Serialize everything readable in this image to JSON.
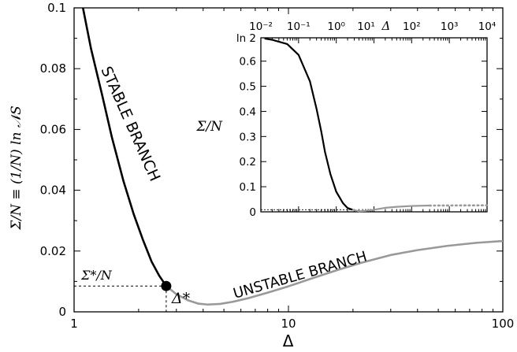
{
  "chart_data": [
    {
      "type": "line",
      "xscale": "log",
      "xlim": [
        1,
        100
      ],
      "ylim": [
        0,
        0.1
      ],
      "xlabel": "Δ",
      "ylabel": "Σ/N ≡ (1/N) ln 𝒩S",
      "xticks": [
        1,
        10,
        100
      ],
      "xtick_labels": [
        "1",
        "10",
        "100"
      ],
      "yticks": [
        0,
        0.02,
        0.04,
        0.06,
        0.08,
        0.1
      ],
      "ytick_labels": [
        "0",
        "0.02",
        "0.04",
        "0.06",
        "0.08",
        "0.1"
      ],
      "grid": false,
      "series": [
        {
          "name": "STABLE BRANCH",
          "color": "#000000",
          "x": [
            1.1,
            1.2,
            1.35,
            1.5,
            1.7,
            1.9,
            2.1,
            2.3,
            2.5,
            2.69
          ],
          "y": [
            0.1,
            0.0865,
            0.0715,
            0.0575,
            0.043,
            0.032,
            0.0235,
            0.0165,
            0.0118,
            0.0085
          ]
        },
        {
          "name": "UNSTABLE BRANCH",
          "color": "#999999",
          "x": [
            2.69,
            3.0,
            3.4,
            3.8,
            4.2,
            4.8,
            5.5,
            6.5,
            8,
            10,
            13,
            17,
            22,
            30,
            40,
            55,
            75,
            100
          ],
          "y": [
            0.0085,
            0.0058,
            0.0038,
            0.0027,
            0.0024,
            0.0026,
            0.0033,
            0.0045,
            0.0063,
            0.0084,
            0.0111,
            0.0138,
            0.0162,
            0.0187,
            0.0203,
            0.0217,
            0.0227,
            0.0233
          ]
        }
      ],
      "annotations": {
        "critical_point": {
          "x": 2.69,
          "y": 0.0085
        },
        "sigma_label": "Σ*/N",
        "delta_label": "Δ*"
      }
    },
    {
      "type": "line",
      "xscale": "log",
      "xlim": [
        0.01,
        10000
      ],
      "ylim": [
        0,
        0.693
      ],
      "xlabel": "Δ",
      "ylabel": "Σ/N",
      "xticks": [
        0.01,
        0.1,
        1,
        10,
        100,
        1000,
        10000
      ],
      "xtick_labels": [
        "10⁻²",
        "10⁻¹",
        "10⁰",
        "10¹",
        "10²",
        "10³",
        "10⁴"
      ],
      "yticks": [
        0,
        0.1,
        0.2,
        0.3,
        0.4,
        0.5,
        0.6
      ],
      "ytick_labels": [
        "0",
        "0.1",
        "0.2",
        "0.3",
        "0.4",
        "0.5",
        "0.6"
      ],
      "ytop_label": "ln 2",
      "series": [
        {
          "name": "stable",
          "color": "#000000",
          "x": [
            0.0125,
            0.02,
            0.05,
            0.1,
            0.2,
            0.3,
            0.4,
            0.5,
            0.7,
            1.0,
            1.5,
            2.0,
            2.69
          ],
          "y": [
            0.69,
            0.685,
            0.668,
            0.625,
            0.52,
            0.41,
            0.32,
            0.24,
            0.15,
            0.08,
            0.035,
            0.015,
            0.0085
          ]
        },
        {
          "name": "unstable",
          "color": "#999999",
          "x": [
            2.69,
            4,
            6,
            10,
            20,
            40,
            100,
            300
          ],
          "y": [
            0.0085,
            0.0025,
            0.004,
            0.0084,
            0.016,
            0.02,
            0.0233,
            0.025
          ]
        },
        {
          "name": "unstable-dotted",
          "color": "#999999",
          "style": "dotted",
          "x": [
            300,
            10000
          ],
          "y": [
            0.025,
            0.026
          ]
        }
      ],
      "reference_line": {
        "y": 0.0085,
        "style": "dashed"
      }
    }
  ]
}
